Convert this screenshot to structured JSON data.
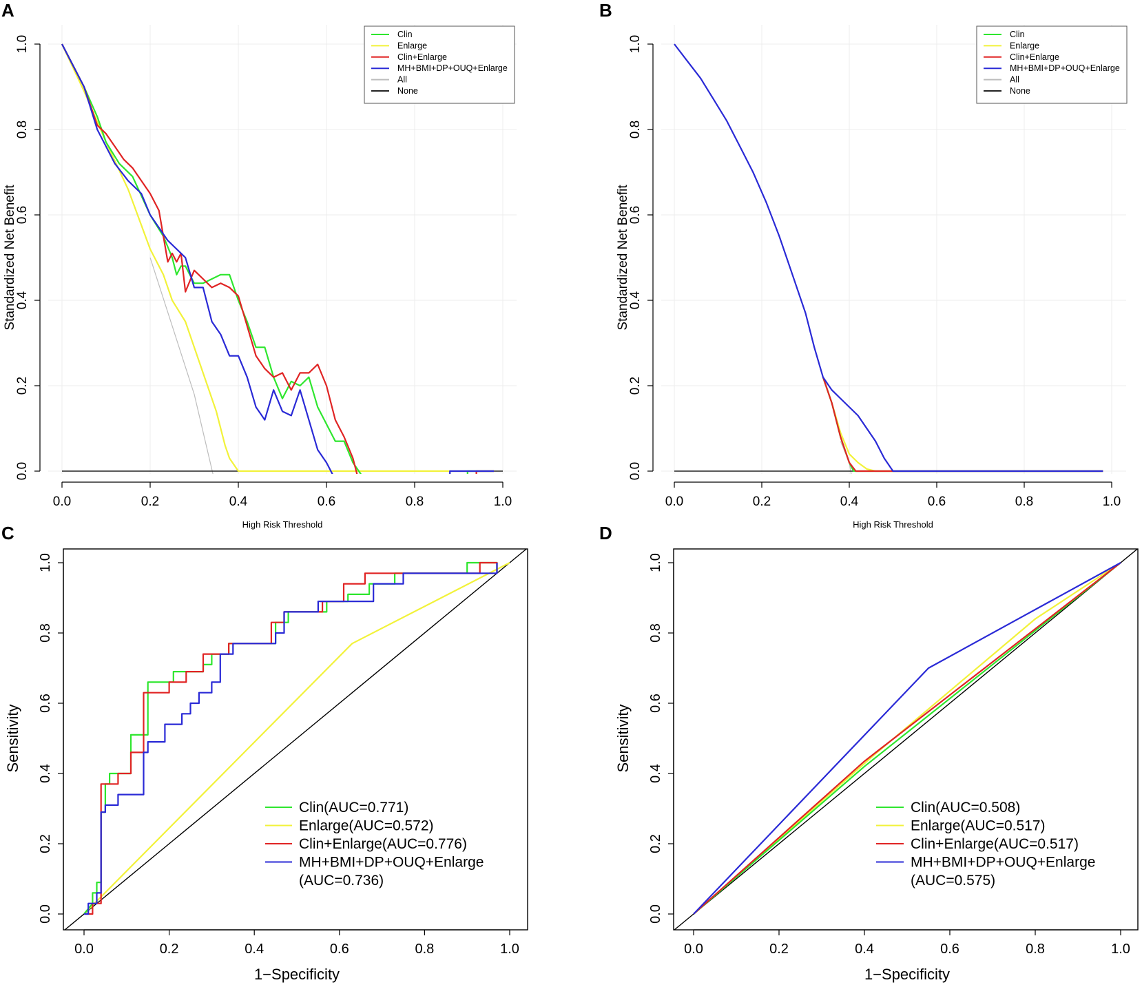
{
  "colors": {
    "Clin": "#2ee62e",
    "Enlarge": "#f2f23a",
    "Clin+Enlarge": "#e02424",
    "MH+BMI+DP+OUQ+Enlarge": "#2a2ad6",
    "All": "#bdbdbd",
    "None": "#222222",
    "grid": "#ececec",
    "diagonal": "#000000"
  },
  "chart_data": [
    {
      "panel": "A",
      "type": "line",
      "xlabel": "High Risk Threshold",
      "ylabel": "Standardized Net Benefit",
      "xlim": [
        0,
        1
      ],
      "ylim": [
        0,
        1
      ],
      "xticks": [
        "0.0",
        "0.2",
        "0.4",
        "0.6",
        "0.8",
        "1.0"
      ],
      "yticks": [
        "0.0",
        "0.2",
        "0.4",
        "0.6",
        "0.8",
        "1.0"
      ],
      "grid": true,
      "legend_position": "top-right",
      "legend": [
        "Clin",
        "Enlarge",
        "Clin+Enlarge",
        "MH+BMI+DP+OUQ+Enlarge",
        "All",
        "None"
      ],
      "series": [
        {
          "name": "Clin",
          "x": [
            0,
            0.05,
            0.08,
            0.1,
            0.13,
            0.16,
            0.2,
            0.23,
            0.25,
            0.26,
            0.27,
            0.28,
            0.3,
            0.32,
            0.34,
            0.36,
            0.38,
            0.4,
            0.42,
            0.44,
            0.46,
            0.48,
            0.5,
            0.52,
            0.54,
            0.56,
            0.58,
            0.6,
            0.62,
            0.64,
            0.66,
            0.68,
            0.69,
            0.7
          ],
          "y": [
            1,
            0.9,
            0.83,
            0.77,
            0.72,
            0.69,
            0.6,
            0.55,
            0.5,
            0.46,
            0.48,
            0.48,
            0.44,
            0.44,
            0.45,
            0.46,
            0.46,
            0.4,
            0.35,
            0.29,
            0.29,
            0.22,
            0.17,
            0.21,
            0.2,
            0.22,
            0.15,
            0.11,
            0.07,
            0.07,
            0.02,
            -0.01,
            -0.03,
            -0.05
          ]
        },
        {
          "name": "Enlarge",
          "x": [
            0,
            0.05,
            0.1,
            0.15,
            0.2,
            0.23,
            0.25,
            0.28,
            0.3,
            0.32,
            0.35,
            0.37,
            0.38,
            0.4,
            0.5,
            0.6,
            0.7,
            0.8,
            0.9,
            0.98
          ],
          "y": [
            1,
            0.89,
            0.77,
            0.66,
            0.52,
            0.46,
            0.4,
            0.35,
            0.29,
            0.23,
            0.14,
            0.06,
            0.03,
            0,
            0,
            0,
            0,
            0,
            0,
            0
          ]
        },
        {
          "name": "Clin+Enlarge",
          "x": [
            0,
            0.05,
            0.08,
            0.1,
            0.12,
            0.14,
            0.16,
            0.18,
            0.2,
            0.22,
            0.24,
            0.25,
            0.26,
            0.27,
            0.28,
            0.3,
            0.32,
            0.34,
            0.36,
            0.38,
            0.4,
            0.42,
            0.44,
            0.46,
            0.48,
            0.5,
            0.52,
            0.54,
            0.56,
            0.58,
            0.6,
            0.62,
            0.64,
            0.66,
            0.68,
            0.69
          ],
          "y": [
            1,
            0.9,
            0.81,
            0.79,
            0.76,
            0.73,
            0.71,
            0.68,
            0.65,
            0.61,
            0.49,
            0.51,
            0.49,
            0.51,
            0.42,
            0.47,
            0.45,
            0.43,
            0.44,
            0.43,
            0.41,
            0.34,
            0.27,
            0.24,
            0.22,
            0.23,
            0.19,
            0.23,
            0.23,
            0.25,
            0.2,
            0.12,
            0.08,
            0.03,
            -0.05,
            -0.1
          ]
        },
        {
          "name": "MH+BMI+DP+OUQ+Enlarge",
          "x": [
            0,
            0.05,
            0.08,
            0.1,
            0.12,
            0.15,
            0.18,
            0.2,
            0.22,
            0.24,
            0.26,
            0.28,
            0.3,
            0.32,
            0.34,
            0.36,
            0.38,
            0.4,
            0.42,
            0.44,
            0.46,
            0.48,
            0.5,
            0.52,
            0.54,
            0.56,
            0.58,
            0.6,
            0.62,
            0.64
          ],
          "y": [
            1,
            0.9,
            0.8,
            0.76,
            0.72,
            0.68,
            0.65,
            0.6,
            0.57,
            0.54,
            0.52,
            0.5,
            0.43,
            0.43,
            0.35,
            0.32,
            0.27,
            0.27,
            0.22,
            0.15,
            0.12,
            0.19,
            0.14,
            0.13,
            0.19,
            0.12,
            0.05,
            0.02,
            -0.02,
            -0.04
          ]
        },
        {
          "name": "All",
          "x": [
            0.2,
            0.3,
            0.35
          ],
          "y": [
            0.5,
            0.18,
            -0.04
          ]
        },
        {
          "name": "None",
          "x": [
            0,
            1
          ],
          "y": [
            0,
            0
          ]
        }
      ],
      "extra_segments": [
        {
          "name": "Clin",
          "x": [
            0.92,
            0.92,
            0.98
          ],
          "y": [
            -0.05,
            0,
            0
          ]
        },
        {
          "name": "Clin+Enlarge",
          "x": [
            0.94,
            0.94,
            0.98
          ],
          "y": [
            -0.05,
            0,
            0
          ]
        },
        {
          "name": "MH+BMI+DP+OUQ+Enlarge",
          "x": [
            0.88,
            0.88,
            0.98
          ],
          "y": [
            -0.05,
            0,
            0
          ]
        }
      ]
    },
    {
      "panel": "B",
      "type": "line",
      "xlabel": "High Risk Threshold",
      "ylabel": "Standardized Net Benefit",
      "xlim": [
        0,
        1
      ],
      "ylim": [
        0,
        1
      ],
      "xticks": [
        "0.0",
        "0.2",
        "0.4",
        "0.6",
        "0.8",
        "1.0"
      ],
      "yticks": [
        "0.0",
        "0.2",
        "0.4",
        "0.6",
        "0.8",
        "1.0"
      ],
      "grid": true,
      "legend_position": "top-right",
      "legend": [
        "Clin",
        "Enlarge",
        "Clin+Enlarge",
        "MH+BMI+DP+OUQ+Enlarge",
        "All",
        "None"
      ],
      "series": [
        {
          "name": "Clin",
          "x": [
            0.34,
            0.36,
            0.38,
            0.4,
            0.41,
            0.42,
            0.5,
            0.98
          ],
          "y": [
            0.22,
            0.16,
            0.08,
            0.02,
            0,
            0,
            0,
            0
          ]
        },
        {
          "name": "Enlarge",
          "x": [
            0.34,
            0.36,
            0.38,
            0.4,
            0.42,
            0.44,
            0.46,
            0.5,
            0.98
          ],
          "y": [
            0.22,
            0.16,
            0.09,
            0.04,
            0.02,
            0.005,
            0,
            0,
            0
          ]
        },
        {
          "name": "Clin+Enlarge",
          "x": [
            0.34,
            0.36,
            0.38,
            0.4,
            0.415,
            0.43,
            0.5,
            0.98
          ],
          "y": [
            0.22,
            0.16,
            0.08,
            0.02,
            0,
            0,
            0,
            0
          ]
        },
        {
          "name": "All",
          "x": [
            0.38,
            0.4,
            0.41
          ],
          "y": [
            0.07,
            0.02,
            -0.04
          ]
        },
        {
          "name": "MH+BMI+DP+OUQ+Enlarge",
          "x": [
            0,
            0.03,
            0.06,
            0.09,
            0.12,
            0.15,
            0.18,
            0.21,
            0.24,
            0.27,
            0.3,
            0.32,
            0.34,
            0.36,
            0.38,
            0.4,
            0.42,
            0.44,
            0.46,
            0.48,
            0.5,
            0.6,
            0.8,
            0.98
          ],
          "y": [
            1,
            0.96,
            0.92,
            0.87,
            0.82,
            0.76,
            0.7,
            0.63,
            0.55,
            0.46,
            0.37,
            0.29,
            0.22,
            0.19,
            0.17,
            0.15,
            0.13,
            0.1,
            0.07,
            0.03,
            0,
            0,
            0,
            0
          ]
        },
        {
          "name": "None",
          "x": [
            0,
            0.98
          ],
          "y": [
            0,
            0
          ]
        }
      ]
    },
    {
      "panel": "C",
      "type": "line",
      "subtype": "roc",
      "xlabel": "1−Specificity",
      "ylabel": "Sensitivity",
      "xlim": [
        0,
        1
      ],
      "ylim": [
        0,
        1
      ],
      "xticks": [
        "0.0",
        "0.2",
        "0.4",
        "0.6",
        "0.8",
        "1.0"
      ],
      "yticks": [
        "0.0",
        "0.2",
        "0.4",
        "0.6",
        "0.8",
        "1.0"
      ],
      "grid": false,
      "legend_position": "bottom-right",
      "legend": [
        {
          "name": "Clin",
          "lines": [
            "Clin(AUC=0.771)"
          ]
        },
        {
          "name": "Enlarge",
          "lines": [
            "Enlarge(AUC=0.572)"
          ]
        },
        {
          "name": "Clin+Enlarge",
          "lines": [
            "Clin+Enlarge(AUC=0.776)"
          ]
        },
        {
          "name": "MH+BMI+DP+OUQ+Enlarge",
          "lines": [
            "MH+BMI+DP+OUQ+Enlarge",
            "(AUC=0.736)"
          ]
        }
      ],
      "series": [
        {
          "name": "Clin",
          "x": [
            0,
            0.02,
            0.02,
            0.03,
            0.03,
            0.04,
            0.04,
            0.05,
            0.05,
            0.06,
            0.06,
            0.08,
            0.08,
            0.11,
            0.11,
            0.15,
            0.15,
            0.18,
            0.18,
            0.21,
            0.21,
            0.25,
            0.25,
            0.28,
            0.28,
            0.3,
            0.3,
            0.34,
            0.34,
            0.45,
            0.45,
            0.48,
            0.48,
            0.52,
            0.52,
            0.57,
            0.57,
            0.62,
            0.62,
            0.67,
            0.67,
            0.73,
            0.73,
            0.9,
            0.9,
            0.97,
            0.97
          ],
          "y": [
            0,
            0.03,
            0.06,
            0.06,
            0.09,
            0.09,
            0.29,
            0.29,
            0.37,
            0.37,
            0.4,
            0.4,
            0.4,
            0.4,
            0.51,
            0.51,
            0.66,
            0.66,
            0.66,
            0.66,
            0.69,
            0.69,
            0.69,
            0.69,
            0.71,
            0.71,
            0.74,
            0.74,
            0.77,
            0.77,
            0.83,
            0.83,
            0.86,
            0.86,
            0.86,
            0.86,
            0.89,
            0.89,
            0.91,
            0.91,
            0.94,
            0.94,
            0.97,
            0.97,
            1,
            1,
            0.97
          ]
        },
        {
          "name": "Enlarge",
          "x": [
            0,
            0.63,
            1
          ],
          "y": [
            0,
            0.77,
            1
          ]
        },
        {
          "name": "Clin+Enlarge",
          "x": [
            0,
            0.02,
            0.02,
            0.04,
            0.04,
            0.06,
            0.06,
            0.08,
            0.08,
            0.11,
            0.11,
            0.14,
            0.14,
            0.16,
            0.16,
            0.2,
            0.2,
            0.24,
            0.24,
            0.28,
            0.28,
            0.34,
            0.34,
            0.44,
            0.44,
            0.47,
            0.47,
            0.56,
            0.56,
            0.61,
            0.61,
            0.66,
            0.66,
            0.74,
            0.74,
            0.93,
            0.93,
            0.97,
            0.97
          ],
          "y": [
            0,
            0,
            0.03,
            0.03,
            0.37,
            0.37,
            0.37,
            0.37,
            0.4,
            0.4,
            0.46,
            0.46,
            0.63,
            0.63,
            0.63,
            0.63,
            0.66,
            0.66,
            0.69,
            0.69,
            0.74,
            0.74,
            0.77,
            0.77,
            0.83,
            0.83,
            0.86,
            0.86,
            0.89,
            0.89,
            0.94,
            0.94,
            0.97,
            0.97,
            0.97,
            0.97,
            1,
            1,
            0.97
          ]
        },
        {
          "name": "MH+BMI+DP+OUQ+Enlarge",
          "x": [
            0,
            0.01,
            0.01,
            0.03,
            0.03,
            0.04,
            0.04,
            0.05,
            0.05,
            0.06,
            0.06,
            0.08,
            0.08,
            0.1,
            0.1,
            0.14,
            0.14,
            0.15,
            0.15,
            0.19,
            0.19,
            0.23,
            0.23,
            0.25,
            0.25,
            0.27,
            0.27,
            0.3,
            0.3,
            0.32,
            0.32,
            0.35,
            0.35,
            0.45,
            0.45,
            0.47,
            0.47,
            0.5,
            0.5,
            0.55,
            0.55,
            0.6,
            0.6,
            0.68,
            0.68,
            0.75,
            0.75,
            0.97,
            0.97
          ],
          "y": [
            0,
            0,
            0.03,
            0.03,
            0.06,
            0.06,
            0.29,
            0.29,
            0.31,
            0.31,
            0.31,
            0.31,
            0.34,
            0.34,
            0.34,
            0.34,
            0.46,
            0.46,
            0.49,
            0.49,
            0.54,
            0.54,
            0.57,
            0.57,
            0.6,
            0.6,
            0.63,
            0.63,
            0.66,
            0.66,
            0.74,
            0.74,
            0.77,
            0.77,
            0.8,
            0.8,
            0.86,
            0.86,
            0.86,
            0.86,
            0.89,
            0.89,
            0.89,
            0.89,
            0.94,
            0.94,
            0.97,
            0.97,
            1
          ]
        },
        {
          "name": "diagonal",
          "x": [
            -0.05,
            1.05
          ],
          "y": [
            -0.05,
            1.05
          ]
        }
      ]
    },
    {
      "panel": "D",
      "type": "line",
      "subtype": "roc",
      "xlabel": "1−Specificity",
      "ylabel": "Sensitivity",
      "xlim": [
        0,
        1
      ],
      "ylim": [
        0,
        1
      ],
      "xticks": [
        "0.0",
        "0.2",
        "0.4",
        "0.6",
        "0.8",
        "1.0"
      ],
      "yticks": [
        "0.0",
        "0.2",
        "0.4",
        "0.6",
        "0.8",
        "1.0"
      ],
      "grid": false,
      "legend_position": "bottom-right",
      "legend": [
        {
          "name": "Clin",
          "lines": [
            "Clin(AUC=0.508)"
          ]
        },
        {
          "name": "Enlarge",
          "lines": [
            "Enlarge(AUC=0.517)"
          ]
        },
        {
          "name": "Clin+Enlarge",
          "lines": [
            "Clin+Enlarge(AUC=0.517)"
          ]
        },
        {
          "name": "MH+BMI+DP+OUQ+Enlarge",
          "lines": [
            "MH+BMI+DP+OUQ+Enlarge",
            "(AUC=0.575)"
          ]
        }
      ],
      "series": [
        {
          "name": "Clin",
          "x": [
            0,
            0.4,
            1
          ],
          "y": [
            0,
            0.42,
            1
          ]
        },
        {
          "name": "Enlarge",
          "x": [
            0,
            0.42,
            0.8,
            1
          ],
          "y": [
            0,
            0.45,
            0.84,
            1
          ]
        },
        {
          "name": "Clin+Enlarge",
          "x": [
            0,
            0.4,
            1
          ],
          "y": [
            0,
            0.435,
            1
          ]
        },
        {
          "name": "MH+BMI+DP+OUQ+Enlarge",
          "x": [
            0,
            0.55,
            1
          ],
          "y": [
            0,
            0.7,
            1
          ]
        },
        {
          "name": "diagonal",
          "x": [
            -0.05,
            1.05
          ],
          "y": [
            -0.05,
            1.05
          ]
        }
      ]
    }
  ]
}
